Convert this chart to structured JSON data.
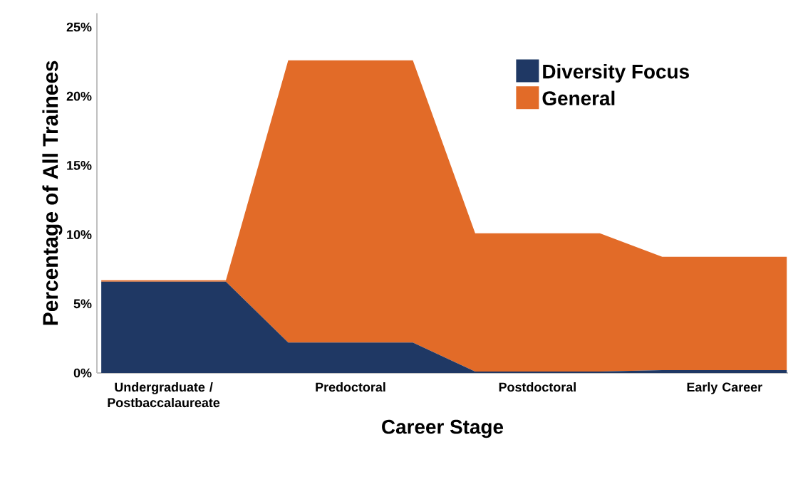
{
  "chart_data": {
    "type": "area",
    "stacked": true,
    "xlabel": "Career Stage",
    "ylabel": "Percentage of  All Trainees",
    "categories": [
      null,
      "Undergraduate / Postbaccalaureate",
      null,
      null,
      "Predoctoral",
      null,
      null,
      "Postdoctoral",
      null,
      null,
      "Early Career",
      null
    ],
    "series": [
      {
        "name": "Diversity Focus",
        "color": "#1f3864",
        "values": [
          6.6,
          6.6,
          6.6,
          2.2,
          2.2,
          2.2,
          0.1,
          0.1,
          0.1,
          0.2,
          0.2,
          0.2
        ]
      },
      {
        "name": "General",
        "color": "#e26b28",
        "values": [
          0.1,
          0.1,
          0.1,
          20.4,
          20.4,
          20.4,
          10.0,
          10.0,
          10.0,
          8.2,
          8.2,
          8.2
        ]
      }
    ],
    "ylim": [
      0,
      26
    ],
    "yticks": [
      {
        "value": 0,
        "label": "0%"
      },
      {
        "value": 5,
        "label": "5%"
      },
      {
        "value": 10,
        "label": "10%"
      },
      {
        "value": 15,
        "label": "15%"
      },
      {
        "value": 20,
        "label": "20%"
      },
      {
        "value": 25,
        "label": "25%"
      }
    ],
    "legend": "top right"
  }
}
